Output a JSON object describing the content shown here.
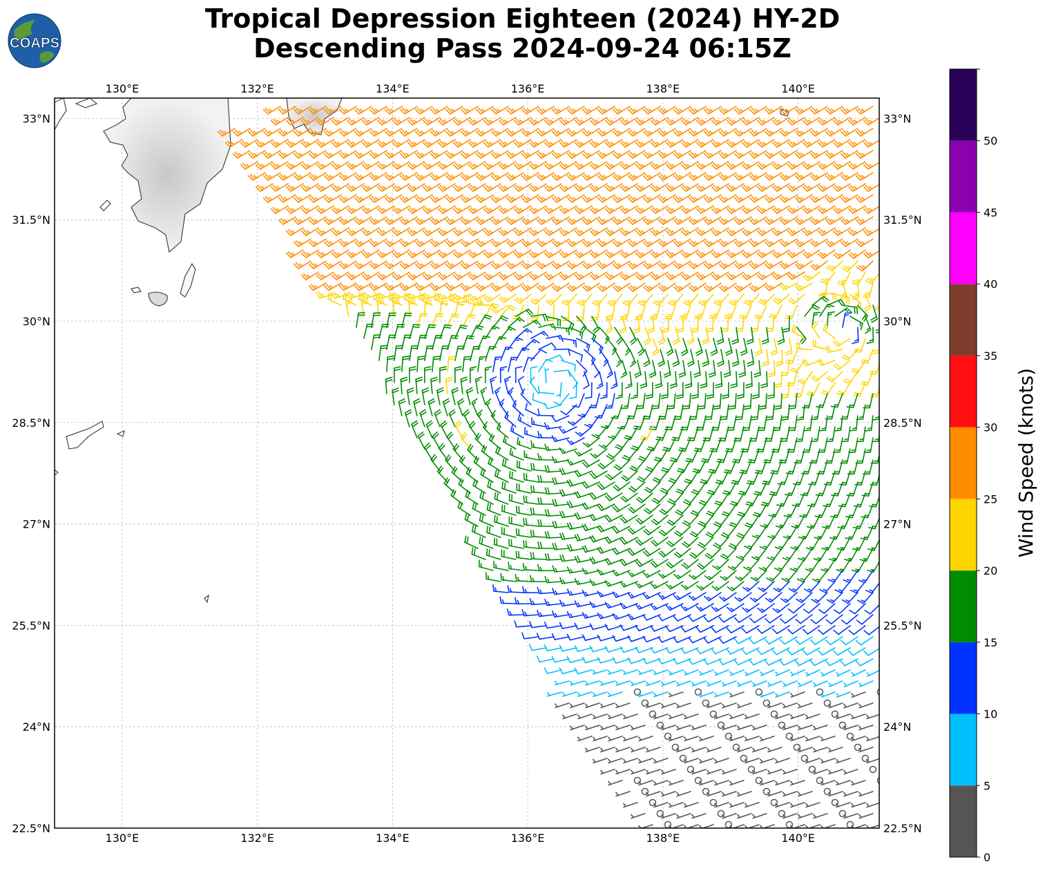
{
  "title": {
    "line1": "Tropical Depression Eighteen (2024) HY-2D",
    "line2": "Descending Pass 2024-09-24 06:15Z"
  },
  "logo": {
    "text": "COAPS",
    "icon": "globe-logo-icon"
  },
  "map": {
    "lon_range": [
      129,
      141.2
    ],
    "lat_range": [
      22.5,
      33.3
    ],
    "lon_ticks": [
      130,
      132,
      134,
      136,
      138,
      140
    ],
    "lon_labels": [
      "130°E",
      "132°E",
      "134°E",
      "136°E",
      "138°E",
      "140°E"
    ],
    "lat_ticks": [
      22.5,
      24,
      25.5,
      27,
      28.5,
      30,
      31.5,
      33
    ],
    "lat_labels": [
      "22.5°N",
      "24°N",
      "25.5°N",
      "27°N",
      "28.5°N",
      "30°N",
      "31.5°N",
      "33°N"
    ],
    "grid": true,
    "circulation_center": {
      "lon": 136.4,
      "lat": 29.1
    },
    "secondary_low": {
      "lon": 140.7,
      "lat": 29.9
    }
  },
  "colorbar": {
    "label": "Wind Speed (knots)",
    "bounds": [
      0,
      5,
      10,
      15,
      20,
      25,
      30,
      35,
      40,
      45,
      50,
      55
    ],
    "tick_labels": [
      "0",
      "5",
      "10",
      "15",
      "20",
      "25",
      "30",
      "35",
      "40",
      "45",
      "50"
    ],
    "colors": [
      "#555555",
      "#00bfff",
      "#0033ff",
      "#008c00",
      "#ffd500",
      "#ff8c00",
      "#ff0f0f",
      "#803d2e",
      "#ff00ff",
      "#8c00b0",
      "#2b0057"
    ]
  }
}
